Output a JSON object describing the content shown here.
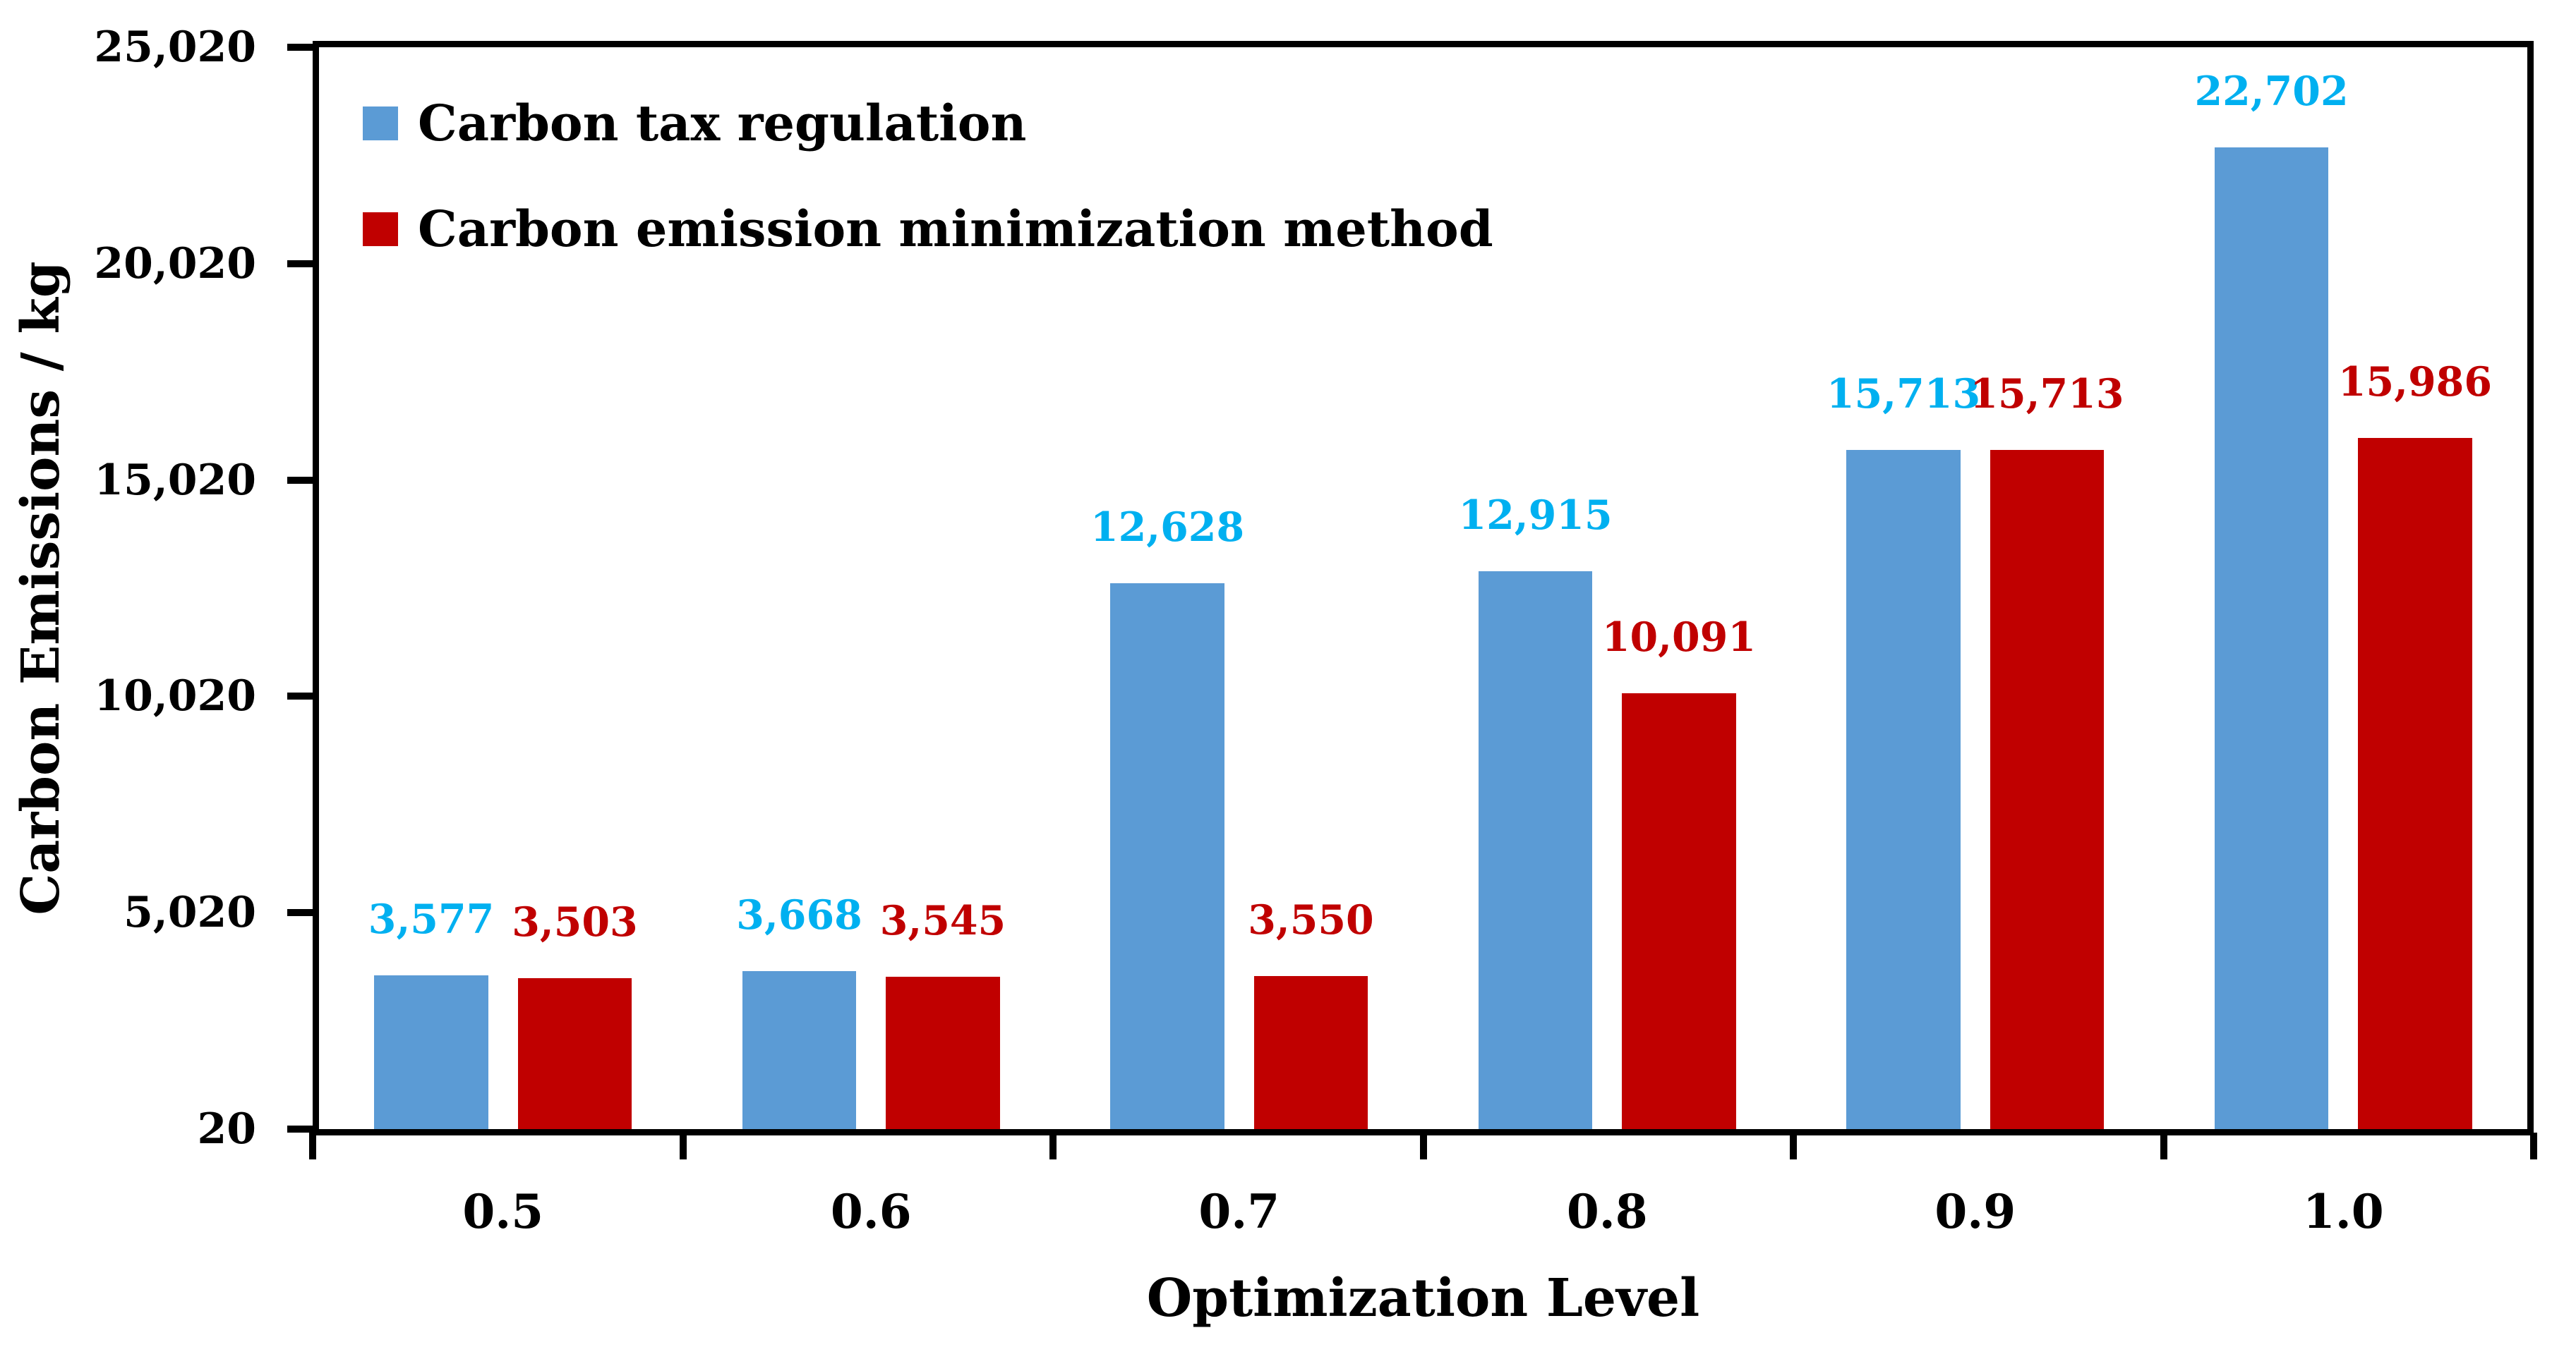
{
  "chart_data": {
    "type": "bar",
    "title": "",
    "xlabel": "Optimization Level",
    "ylabel": "Carbon Emissions / kg",
    "categories": [
      "0.5",
      "0.6",
      "0.7",
      "0.8",
      "0.9",
      "1.0"
    ],
    "series": [
      {
        "name": "Carbon tax regulation",
        "color": "#5B9BD5",
        "label_color": "#00B0F0",
        "values": [
          3577,
          3668,
          12628,
          12915,
          15713,
          22702
        ],
        "value_labels": [
          "3,577",
          "3,668",
          "12,628",
          "12,915",
          "15,713",
          "22,702"
        ]
      },
      {
        "name": "Carbon emission minimization method",
        "color": "#C00000",
        "label_color": "#C00000",
        "values": [
          3503,
          3545,
          3550,
          10091,
          15713,
          15986
        ],
        "value_labels": [
          "3,503",
          "3,545",
          "3,550",
          "10,091",
          "15,713",
          "15,986"
        ]
      }
    ],
    "y_axis": {
      "min": 20,
      "max": 25020,
      "ticks": [
        {
          "value": 20,
          "label": "20"
        },
        {
          "value": 5020,
          "label": "5,020"
        },
        {
          "value": 10020,
          "label": "10,020"
        },
        {
          "value": 15020,
          "label": "15,020"
        },
        {
          "value": 20020,
          "label": "20,020"
        },
        {
          "value": 25020,
          "label": "25,020"
        }
      ]
    },
    "legend_position": "top-left",
    "grid": false,
    "axis_color": "#000000",
    "background_color": "#FFFFFF"
  }
}
